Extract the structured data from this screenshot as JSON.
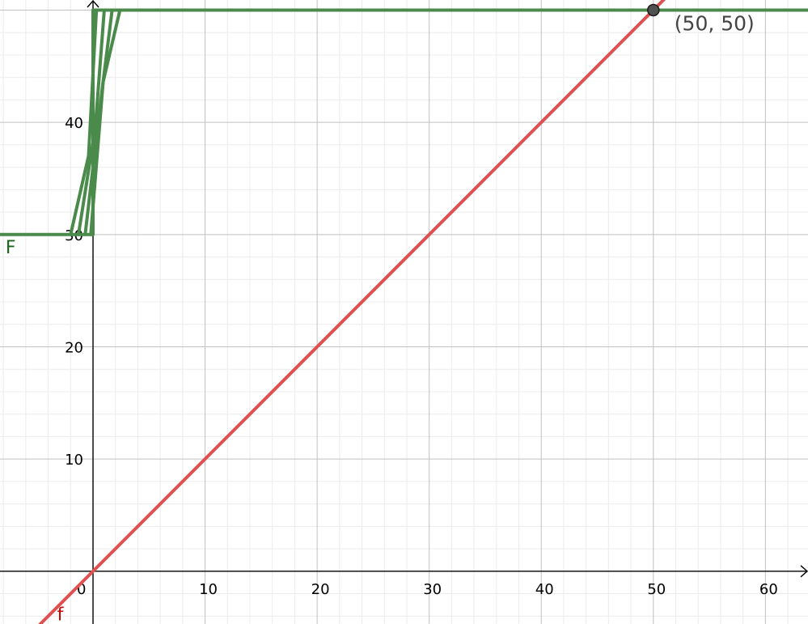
{
  "chart_data": {
    "type": "line",
    "title": "",
    "xlabel": "",
    "ylabel": "",
    "xlim": [
      -8.3,
      63.8
    ],
    "ylim": [
      -4.7,
      50.9
    ],
    "grid": true,
    "x_ticks": [
      0,
      10,
      20,
      30,
      40,
      50,
      60
    ],
    "x_tick_labels": [
      "0",
      "10",
      "20",
      "30",
      "40",
      "50",
      "60"
    ],
    "y_ticks": [
      10,
      20,
      30,
      40
    ],
    "y_tick_labels": [
      "10",
      "20",
      "30",
      "40"
    ],
    "series": [
      {
        "name": "f",
        "color": "#e05050",
        "label_color": "#cc0000",
        "points": [
          [
            -5,
            -5
          ],
          [
            55,
            55
          ]
        ]
      },
      {
        "name": "F",
        "color": "#4a8a4a",
        "label_color": "#1a661a",
        "points": [
          [
            -8.3,
            30
          ],
          [
            0,
            30
          ],
          [
            0,
            50
          ],
          [
            63.8,
            50
          ]
        ]
      },
      {
        "name": "",
        "color": "#4a8a4a",
        "points": [
          [
            -2,
            30
          ],
          [
            -0.4,
            37
          ],
          [
            0.3,
            50
          ]
        ]
      },
      {
        "name": "",
        "color": "#4a8a4a",
        "points": [
          [
            -1.3,
            30
          ],
          [
            0.2,
            39.5
          ],
          [
            1.0,
            50
          ]
        ]
      },
      {
        "name": "",
        "color": "#4a8a4a",
        "points": [
          [
            -0.7,
            30
          ],
          [
            0.7,
            42
          ],
          [
            1.7,
            50
          ]
        ]
      },
      {
        "name": "",
        "color": "#4a8a4a",
        "points": [
          [
            -0.2,
            30
          ],
          [
            0.9,
            43.6
          ],
          [
            2.4,
            50
          ]
        ]
      }
    ],
    "point": {
      "x": 50,
      "y": 50,
      "label": "(50, 50)"
    }
  }
}
